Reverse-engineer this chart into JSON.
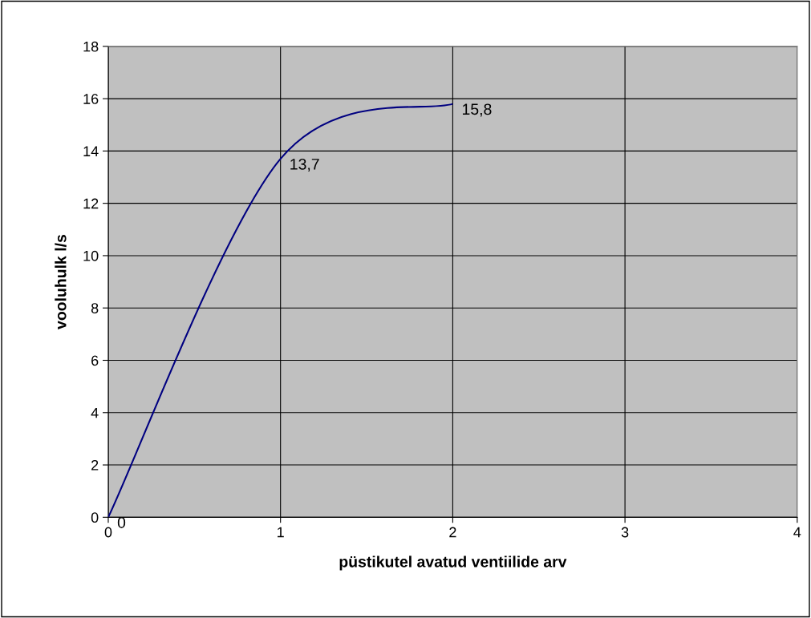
{
  "chart_data": {
    "type": "line",
    "xlabel": "püstikutel avatud ventiilide arv",
    "ylabel": "vooluhulk l/s",
    "x": [
      0,
      1,
      2
    ],
    "series": [
      {
        "color": "#000080",
        "values": [
          0,
          13.7,
          15.8
        ]
      }
    ],
    "value_labels": [
      "0",
      "13,7",
      "15,8"
    ],
    "xlim": [
      0,
      4
    ],
    "xticks": [
      0,
      1,
      2,
      3,
      4
    ],
    "ylim": [
      0,
      18
    ],
    "yticks": [
      0,
      2,
      4,
      6,
      8,
      10,
      12,
      14,
      16,
      18
    ],
    "grid": true,
    "legend": false,
    "marker": "none",
    "line_style": "solid"
  }
}
